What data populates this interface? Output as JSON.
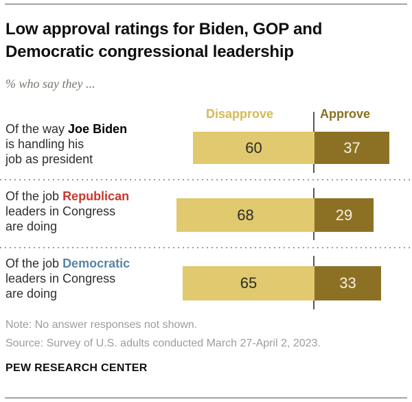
{
  "header": {
    "title_lines": [
      "Low approval ratings for Biden, GOP and",
      "Democratic congressional leadership"
    ],
    "subtitle": "% who say they ..."
  },
  "chart_data": {
    "type": "bar",
    "orientation": "horizontal-diverging",
    "unit": "percent",
    "column_headers": {
      "disapprove": "Disapprove",
      "approve": "Approve"
    },
    "categories": [
      "Of the way Joe Biden is handling his job as president",
      "Of the job Republican leaders in Congress are doing",
      "Of the job Democratic leaders in Congress are doing"
    ],
    "series": [
      {
        "name": "Disapprove",
        "values": [
          60,
          68,
          65
        ]
      },
      {
        "name": "Approve",
        "values": [
          37,
          29,
          33
        ]
      }
    ],
    "rows": [
      {
        "disapprove": 60,
        "approve": 37,
        "label_lines": [
          [
            {
              "text": "Of the way ",
              "bold": false
            },
            {
              "text": "Joe Biden",
              "bold": true,
              "color": "#000000"
            }
          ],
          [
            {
              "text": "is handling his",
              "bold": false
            }
          ],
          [
            {
              "text": "job as president",
              "bold": false
            }
          ]
        ]
      },
      {
        "disapprove": 68,
        "approve": 29,
        "label_lines": [
          [
            {
              "text": "Of the job ",
              "bold": false
            },
            {
              "text": "Republican",
              "bold": true,
              "color": "#c7392c"
            }
          ],
          [
            {
              "text": "leaders in Congress",
              "bold": false
            }
          ],
          [
            {
              "text": "are doing",
              "bold": false
            }
          ]
        ]
      },
      {
        "disapprove": 65,
        "approve": 33,
        "label_lines": [
          [
            {
              "text": "Of the job ",
              "bold": false
            },
            {
              "text": "Democratic",
              "bold": true,
              "color": "#5584a9"
            }
          ],
          [
            {
              "text": "leaders in Congress",
              "bold": false
            }
          ],
          [
            {
              "text": "are doing",
              "bold": false
            }
          ]
        ]
      }
    ],
    "colors": {
      "disapprove_bar": "#e0c96e",
      "approve_bar": "#8c7125",
      "disapprove_header": "#d6ba58",
      "approve_header": "#8a6d1f",
      "value_on_light": "#2b2b2b",
      "value_on_dark": "#f8f2df"
    },
    "legend_position": "top",
    "grid": false
  },
  "footer": {
    "note": "Note: No answer responses not shown.",
    "source": "Source: Survey of U.S. adults conducted March 27-April 2, 2023.",
    "brand": "PEW RESEARCH CENTER"
  }
}
